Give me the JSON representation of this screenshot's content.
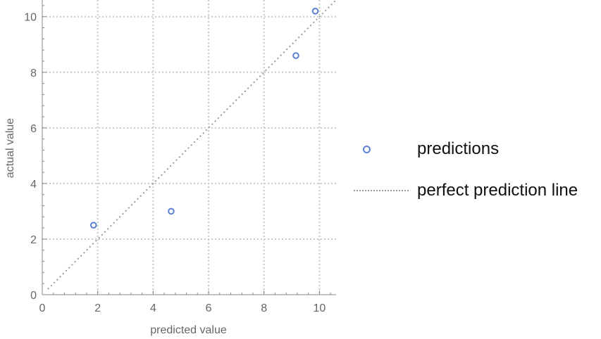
{
  "chart_data": {
    "type": "scatter",
    "xlabel": "predicted value",
    "ylabel": "actual value",
    "xlim": [
      0,
      10.6
    ],
    "ylim": [
      0,
      10.6
    ],
    "xticks": [
      0,
      2,
      4,
      6,
      8,
      10
    ],
    "yticks": [
      0,
      2,
      4,
      6,
      8,
      10
    ],
    "grid": true,
    "legend_position": "right",
    "series": [
      {
        "name": "predictions",
        "kind": "scatter",
        "marker": "open-circle",
        "color": "#5E81D1",
        "points": [
          {
            "x": 1.85,
            "y": 2.5
          },
          {
            "x": 4.65,
            "y": 3.0
          },
          {
            "x": 9.15,
            "y": 8.6
          },
          {
            "x": 9.85,
            "y": 10.2
          }
        ]
      },
      {
        "name": "perfect prediction line",
        "kind": "line",
        "style": "dotted",
        "color": "#9a9a9a",
        "points": [
          {
            "x": 0.2,
            "y": 0.2
          },
          {
            "x": 10.6,
            "y": 10.6
          }
        ]
      }
    ]
  }
}
